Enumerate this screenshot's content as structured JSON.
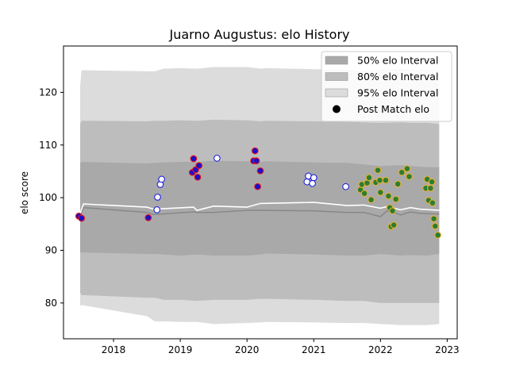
{
  "chart_data": {
    "type": "scatter",
    "title": "Juarno Augustus: elo History",
    "xlabel": "",
    "ylabel": "elo score",
    "xlim": [
      2017.25,
      2023.15
    ],
    "ylim": [
      73.2,
      128.8
    ],
    "x_ticks": [
      2018,
      2019,
      2020,
      2021,
      2022,
      2023
    ],
    "y_ticks": [
      80,
      90,
      100,
      110,
      120
    ],
    "grid": false,
    "legend_position": "top-right",
    "legend": [
      "50% elo Interval",
      "80% elo Interval",
      "95% elo Interval",
      "Post Match elo"
    ],
    "colors": {
      "band50": "#a9a9a9",
      "band80": "#bdbdbd",
      "band95": "#dcdcdc",
      "mean_line": "#888888",
      "median_line": "#ffffff",
      "red_edge": "#e8101a",
      "blue_edge": "#2020e0",
      "gold_edge": "#e8b030",
      "marker_blue": "#1a10c8",
      "marker_green": "#2e7d32"
    },
    "bands": {
      "x": [
        2017.5,
        2017.52,
        2018.5,
        2018.62,
        2018.75,
        2019.0,
        2019.25,
        2019.5,
        2020.0,
        2020.2,
        2020.3,
        2021.0,
        2021.5,
        2021.75,
        2022.0,
        2022.3,
        2022.45,
        2022.7,
        2022.88
      ],
      "p95_hi": [
        121.2,
        124.2,
        124.0,
        124.0,
        124.5,
        124.6,
        124.5,
        124.8,
        124.8,
        124.5,
        124.6,
        124.4,
        124.3,
        124.1,
        124.3,
        124.5,
        124.3,
        124.3,
        124.2
      ],
      "p80_hi": [
        114.0,
        114.6,
        114.5,
        114.6,
        114.6,
        114.7,
        114.6,
        114.8,
        114.7,
        114.5,
        114.6,
        114.5,
        114.4,
        114.3,
        114.2,
        114.3,
        114.2,
        114.2,
        114.0
      ],
      "p50_hi": [
        106.5,
        106.8,
        106.5,
        106.6,
        106.7,
        106.8,
        106.8,
        107.0,
        106.9,
        106.8,
        106.9,
        106.7,
        106.6,
        106.3,
        106.0,
        106.2,
        106.0,
        105.8,
        105.8
      ],
      "p50_lo": [
        89.6,
        89.6,
        89.3,
        89.3,
        89.2,
        89.0,
        89.2,
        89.0,
        89.0,
        89.2,
        89.4,
        89.2,
        89.0,
        89.0,
        89.3,
        89.0,
        89.1,
        89.0,
        89.3
      ],
      "p80_lo": [
        82.0,
        81.5,
        81.0,
        81.0,
        80.6,
        80.6,
        80.4,
        80.6,
        80.6,
        80.8,
        80.8,
        80.6,
        80.4,
        80.4,
        80.0,
        80.0,
        80.0,
        80.0,
        80.0
      ],
      "p95_lo": [
        79.4,
        79.6,
        77.5,
        76.5,
        76.5,
        76.4,
        76.4,
        76.0,
        76.2,
        76.3,
        76.4,
        76.3,
        76.2,
        76.2,
        76.0,
        75.8,
        75.8,
        75.8,
        76.0
      ]
    },
    "line_mean": {
      "x": [
        2017.5,
        2017.55,
        2018.5,
        2018.6,
        2019.2,
        2019.25,
        2019.5,
        2020.0,
        2020.2,
        2021.0,
        2021.5,
        2021.75,
        2022.0,
        2022.1,
        2022.2,
        2022.3,
        2022.45,
        2022.6,
        2022.88
      ],
      "y": [
        96.6,
        98.1,
        97.2,
        96.8,
        97.3,
        97.2,
        97.2,
        97.6,
        97.6,
        97.5,
        97.2,
        97.2,
        96.4,
        97.5,
        97.2,
        96.7,
        97.3,
        97.0,
        96.9
      ]
    },
    "line_median": {
      "x": [
        2017.5,
        2017.55,
        2018.5,
        2018.6,
        2019.2,
        2019.25,
        2019.5,
        2020.0,
        2020.2,
        2021.0,
        2021.5,
        2021.75,
        2022.0,
        2022.1,
        2022.2,
        2022.3,
        2022.45,
        2022.6,
        2022.88
      ],
      "y": [
        97.0,
        98.8,
        98.2,
        97.8,
        98.2,
        97.6,
        98.4,
        98.2,
        98.9,
        99.1,
        98.5,
        98.6,
        98.0,
        98.3,
        98.0,
        97.7,
        98.1,
        97.8,
        97.6
      ]
    },
    "points": [
      {
        "x": 2017.48,
        "y": 96.5,
        "group": "red"
      },
      {
        "x": 2017.52,
        "y": 96.1,
        "group": "red"
      },
      {
        "x": 2018.52,
        "y": 96.2,
        "group": "red"
      },
      {
        "x": 2018.65,
        "y": 97.7,
        "group": "blue"
      },
      {
        "x": 2018.66,
        "y": 100.1,
        "group": "blue"
      },
      {
        "x": 2018.7,
        "y": 102.5,
        "group": "blue"
      },
      {
        "x": 2018.72,
        "y": 103.5,
        "group": "blue"
      },
      {
        "x": 2019.18,
        "y": 104.8,
        "group": "red"
      },
      {
        "x": 2019.2,
        "y": 107.4,
        "group": "red"
      },
      {
        "x": 2019.23,
        "y": 105.3,
        "group": "red"
      },
      {
        "x": 2019.26,
        "y": 103.9,
        "group": "red"
      },
      {
        "x": 2019.28,
        "y": 106.1,
        "group": "red"
      },
      {
        "x": 2019.55,
        "y": 107.5,
        "group": "blue"
      },
      {
        "x": 2020.1,
        "y": 107.0,
        "group": "red"
      },
      {
        "x": 2020.12,
        "y": 108.9,
        "group": "red"
      },
      {
        "x": 2020.14,
        "y": 107.0,
        "group": "red"
      },
      {
        "x": 2020.16,
        "y": 102.1,
        "group": "red"
      },
      {
        "x": 2020.2,
        "y": 105.1,
        "group": "red"
      },
      {
        "x": 2020.9,
        "y": 103.0,
        "group": "blue"
      },
      {
        "x": 2020.92,
        "y": 104.1,
        "group": "blue"
      },
      {
        "x": 2020.98,
        "y": 102.7,
        "group": "blue"
      },
      {
        "x": 2021.0,
        "y": 103.8,
        "group": "blue"
      },
      {
        "x": 2021.48,
        "y": 102.1,
        "group": "blue"
      },
      {
        "x": 2021.7,
        "y": 101.5,
        "group": "gold"
      },
      {
        "x": 2021.72,
        "y": 102.5,
        "group": "gold"
      },
      {
        "x": 2021.76,
        "y": 100.8,
        "group": "gold"
      },
      {
        "x": 2021.8,
        "y": 102.8,
        "group": "gold"
      },
      {
        "x": 2021.83,
        "y": 103.8,
        "group": "gold"
      },
      {
        "x": 2021.86,
        "y": 99.6,
        "group": "gold"
      },
      {
        "x": 2021.93,
        "y": 102.9,
        "group": "gold"
      },
      {
        "x": 2021.96,
        "y": 105.2,
        "group": "gold"
      },
      {
        "x": 2021.99,
        "y": 103.3,
        "group": "gold"
      },
      {
        "x": 2022.0,
        "y": 101.0,
        "group": "gold"
      },
      {
        "x": 2022.08,
        "y": 103.3,
        "group": "gold"
      },
      {
        "x": 2022.12,
        "y": 100.3,
        "group": "gold"
      },
      {
        "x": 2022.14,
        "y": 98.1,
        "group": "gold"
      },
      {
        "x": 2022.16,
        "y": 94.5,
        "group": "gold"
      },
      {
        "x": 2022.18,
        "y": 97.5,
        "group": "gold"
      },
      {
        "x": 2022.2,
        "y": 94.8,
        "group": "gold"
      },
      {
        "x": 2022.23,
        "y": 99.7,
        "group": "gold"
      },
      {
        "x": 2022.26,
        "y": 102.6,
        "group": "gold"
      },
      {
        "x": 2022.32,
        "y": 104.8,
        "group": "gold"
      },
      {
        "x": 2022.4,
        "y": 105.5,
        "group": "gold"
      },
      {
        "x": 2022.43,
        "y": 104.0,
        "group": "gold"
      },
      {
        "x": 2022.68,
        "y": 101.8,
        "group": "gold"
      },
      {
        "x": 2022.7,
        "y": 103.5,
        "group": "gold"
      },
      {
        "x": 2022.72,
        "y": 99.5,
        "group": "gold"
      },
      {
        "x": 2022.75,
        "y": 101.8,
        "group": "gold"
      },
      {
        "x": 2022.77,
        "y": 103.0,
        "group": "gold"
      },
      {
        "x": 2022.8,
        "y": 96.0,
        "group": "gold"
      },
      {
        "x": 2022.78,
        "y": 99.0,
        "group": "gold"
      },
      {
        "x": 2022.82,
        "y": 94.6,
        "group": "gold"
      },
      {
        "x": 2022.86,
        "y": 92.9,
        "group": "gold"
      }
    ]
  }
}
